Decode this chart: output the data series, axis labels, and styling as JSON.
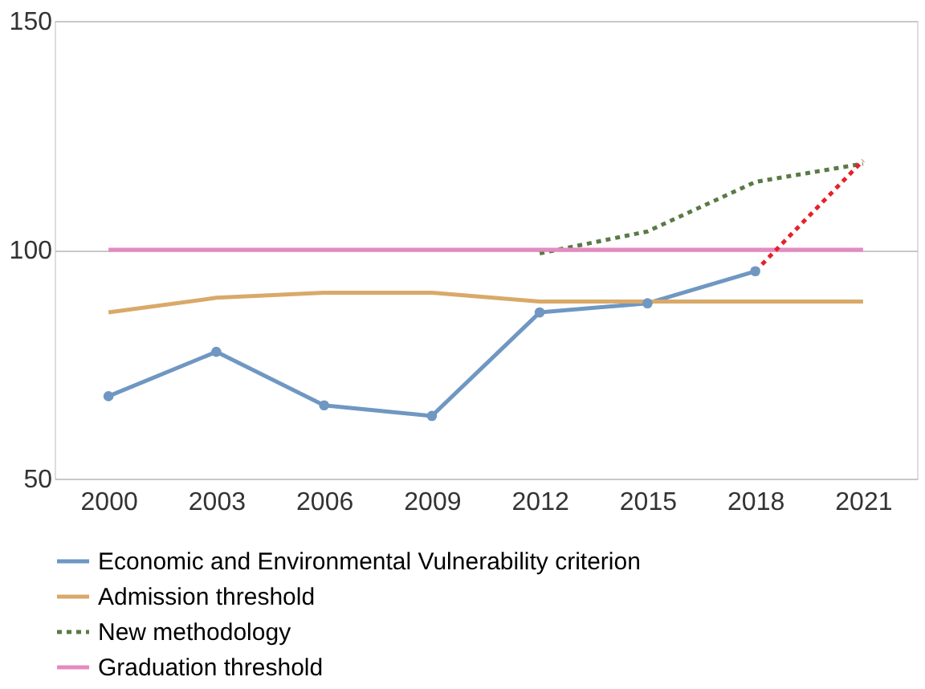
{
  "chart_data": {
    "type": "line",
    "categories": [
      "2000",
      "2003",
      "2006",
      "2009",
      "2012",
      "2015",
      "2018",
      "2021"
    ],
    "series": [
      {
        "name": "Economic and Environmental Vulnerability criterion",
        "color": "#6f97c2",
        "marker": "circle",
        "line_style": "solid",
        "values": [
          68,
          77.7,
          66,
          63.7,
          86.3,
          88.3,
          95.3,
          null
        ]
      },
      {
        "name": "Admission threshold",
        "color": "#d9a96a",
        "marker": "none",
        "line_style": "solid",
        "values": [
          86.3,
          89.5,
          90.6,
          90.6,
          88.7,
          88.7,
          88.7,
          88.7
        ]
      },
      {
        "name": "New methodology",
        "color": "#5a7a46",
        "marker": "none",
        "line_style": "dotted",
        "values": [
          null,
          null,
          null,
          null,
          99.2,
          104,
          114.8,
          118.8
        ]
      },
      {
        "name": "Graduation threshold",
        "color": "#e58ac2",
        "marker": "none",
        "line_style": "solid",
        "values": [
          100,
          100,
          100,
          100,
          100,
          100,
          100,
          100
        ]
      },
      {
        "color": "#e8202a",
        "marker": "none",
        "line_style": "dotted",
        "values": [
          null,
          null,
          null,
          null,
          null,
          null,
          95.3,
          119.5
        ]
      }
    ],
    "ylim": [
      50,
      150
    ],
    "yticks": [
      50,
      100,
      150
    ],
    "grid": "y",
    "legend": "bottom"
  }
}
